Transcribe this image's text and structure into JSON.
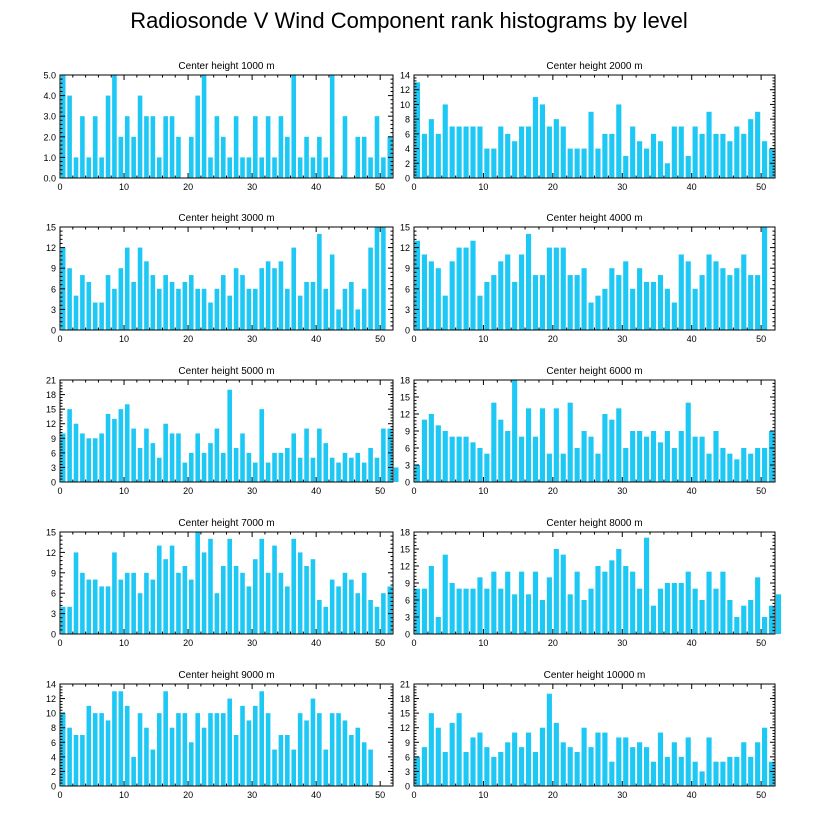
{
  "title": "Radiosonde V Wind Component rank histograms by level",
  "colors": {
    "bar": "#1EC8F5",
    "axis": "#000000"
  },
  "chart_data": [
    {
      "type": "bar",
      "title": "Center height 1000 m",
      "xlim": [
        0,
        52
      ],
      "ylim": [
        0,
        5
      ],
      "xticks": [
        0,
        10,
        20,
        30,
        40,
        50
      ],
      "yticks": [
        0,
        1,
        2,
        3,
        4,
        5
      ],
      "ytick_labels": [
        "0.0",
        "1.0",
        "2.0",
        "3.0",
        "4.0",
        "5.0"
      ],
      "values": [
        5,
        4,
        1,
        3,
        1,
        3,
        1,
        4,
        5,
        2,
        3,
        2,
        4,
        3,
        3,
        1,
        3,
        3,
        2,
        0,
        2,
        4,
        5,
        1,
        3,
        2,
        1,
        3,
        1,
        1,
        3,
        1,
        3,
        1,
        3,
        2,
        5,
        1,
        2,
        1,
        2,
        1,
        5,
        0,
        3,
        0,
        2,
        2,
        1,
        3,
        1,
        2
      ]
    },
    {
      "type": "bar",
      "title": "Center height 2000 m",
      "xlim": [
        0,
        52
      ],
      "ylim": [
        0,
        14
      ],
      "xticks": [
        0,
        10,
        20,
        30,
        40,
        50
      ],
      "yticks": [
        0,
        2,
        4,
        6,
        8,
        10,
        12,
        14
      ],
      "ytick_labels": [
        "0",
        "2",
        "4",
        "6",
        "8",
        "10",
        "12",
        "14"
      ],
      "values": [
        13,
        6,
        8,
        6,
        10,
        7,
        7,
        7,
        7,
        7,
        4,
        4,
        7,
        6,
        5,
        7,
        7,
        11,
        10,
        7,
        8,
        7,
        4,
        4,
        4,
        9,
        4,
        6,
        6,
        10,
        3,
        7,
        5,
        4,
        6,
        5,
        2,
        7,
        7,
        3,
        7,
        6,
        9,
        6,
        6,
        5,
        7,
        6,
        8,
        9,
        5,
        4
      ]
    },
    {
      "type": "bar",
      "title": "Center height 3000 m",
      "xlim": [
        0,
        52
      ],
      "ylim": [
        0,
        15
      ],
      "xticks": [
        0,
        10,
        20,
        30,
        40,
        50
      ],
      "yticks": [
        0,
        3,
        6,
        9,
        12,
        15
      ],
      "ytick_labels": [
        "0",
        "3",
        "6",
        "9",
        "12",
        "15"
      ],
      "values": [
        12,
        9,
        5,
        8,
        7,
        4,
        4,
        8,
        6,
        9,
        12,
        7,
        12,
        10,
        8,
        6,
        8,
        7,
        6,
        7,
        8,
        6,
        6,
        4,
        6,
        8,
        5,
        9,
        8,
        6,
        6,
        9,
        10,
        9,
        10,
        6,
        12,
        5,
        7,
        7,
        14,
        6,
        11,
        3,
        6,
        7,
        3,
        6,
        12,
        15,
        15,
        0
      ]
    },
    {
      "type": "bar",
      "title": "Center height 4000 m",
      "xlim": [
        0,
        52
      ],
      "ylim": [
        0,
        15
      ],
      "xticks": [
        0,
        10,
        20,
        30,
        40,
        50
      ],
      "yticks": [
        0,
        3,
        6,
        9,
        12,
        15
      ],
      "ytick_labels": [
        "0",
        "3",
        "6",
        "9",
        "12",
        "15"
      ],
      "values": [
        13,
        11,
        10,
        9,
        5,
        10,
        12,
        12,
        13,
        5,
        7,
        8,
        10,
        11,
        7,
        11,
        14,
        8,
        8,
        12,
        12,
        12,
        8,
        8,
        9,
        4,
        5,
        6,
        9,
        8,
        10,
        6,
        9,
        7,
        7,
        8,
        6,
        4,
        11,
        10,
        6,
        8,
        11,
        10,
        9,
        8,
        9,
        11,
        8,
        8,
        15,
        0
      ]
    },
    {
      "type": "bar",
      "title": "Center height 5000 m",
      "xlim": [
        0,
        52
      ],
      "ylim": [
        0,
        21
      ],
      "xticks": [
        0,
        10,
        20,
        30,
        40,
        50
      ],
      "yticks": [
        0,
        3,
        6,
        9,
        12,
        15,
        18,
        21
      ],
      "ytick_labels": [
        "0",
        "3",
        "6",
        "9",
        "12",
        "15",
        "18",
        "21"
      ],
      "values": [
        10,
        15,
        12,
        10,
        9,
        9,
        10,
        14,
        13,
        15,
        16,
        11,
        7,
        11,
        8,
        5,
        12,
        10,
        10,
        4,
        6,
        10,
        6,
        8,
        11,
        6,
        19,
        7,
        10,
        6,
        4,
        15,
        4,
        6,
        6,
        7,
        10,
        5,
        11,
        5,
        11,
        8,
        5,
        4,
        6,
        5,
        6,
        4,
        7,
        5,
        11,
        11,
        3
      ]
    },
    {
      "type": "bar",
      "title": "Center height 6000 m",
      "xlim": [
        0,
        52
      ],
      "ylim": [
        0,
        18
      ],
      "xticks": [
        0,
        10,
        20,
        30,
        40,
        50
      ],
      "yticks": [
        0,
        3,
        6,
        9,
        12,
        15,
        18
      ],
      "ytick_labels": [
        "0",
        "3",
        "6",
        "9",
        "12",
        "15",
        "18"
      ],
      "values": [
        3,
        11,
        12,
        10,
        9,
        8,
        8,
        8,
        7,
        6,
        5,
        14,
        11,
        9,
        18,
        8,
        13,
        8,
        13,
        5,
        13,
        5,
        14,
        6,
        9,
        8,
        5,
        12,
        11,
        13,
        6,
        9,
        9,
        8,
        9,
        7,
        9,
        6,
        9,
        14,
        8,
        8,
        5,
        9,
        6,
        5,
        4,
        6,
        5,
        6,
        6,
        9
      ]
    },
    {
      "type": "bar",
      "title": "Center height 7000 m",
      "xlim": [
        0,
        52
      ],
      "ylim": [
        0,
        15
      ],
      "xticks": [
        0,
        10,
        20,
        30,
        40,
        50
      ],
      "yticks": [
        0,
        3,
        6,
        9,
        12,
        15
      ],
      "ytick_labels": [
        "0",
        "3",
        "6",
        "9",
        "12",
        "15"
      ],
      "values": [
        4,
        4,
        12,
        9,
        8,
        8,
        7,
        7,
        12,
        8,
        9,
        9,
        6,
        9,
        8,
        13,
        11,
        13,
        9,
        10,
        8,
        15,
        12,
        14,
        6,
        10,
        14,
        10,
        9,
        7,
        11,
        14,
        9,
        13,
        9,
        7,
        14,
        12,
        10,
        11,
        5,
        4,
        8,
        7,
        9,
        8,
        6,
        9,
        5,
        4,
        6,
        7
      ]
    },
    {
      "type": "bar",
      "title": "Center height 8000 m",
      "xlim": [
        0,
        52
      ],
      "ylim": [
        0,
        18
      ],
      "xticks": [
        0,
        10,
        20,
        30,
        40,
        50
      ],
      "yticks": [
        0,
        3,
        6,
        9,
        12,
        15,
        18
      ],
      "ytick_labels": [
        "0",
        "3",
        "6",
        "9",
        "12",
        "15",
        "18"
      ],
      "values": [
        8,
        8,
        12,
        3,
        14,
        9,
        8,
        8,
        8,
        10,
        8,
        11,
        8,
        11,
        7,
        11,
        7,
        11,
        6,
        10,
        15,
        14,
        7,
        11,
        6,
        8,
        12,
        11,
        13,
        15,
        12,
        11,
        8,
        17,
        5,
        8,
        9,
        9,
        9,
        11,
        8,
        6,
        11,
        8,
        11,
        6,
        3,
        5,
        6,
        10,
        3,
        5,
        7
      ]
    },
    {
      "type": "bar",
      "title": "Center height 9000 m",
      "xlim": [
        0,
        52
      ],
      "ylim": [
        0,
        14
      ],
      "xticks": [
        0,
        10,
        20,
        30,
        40,
        50
      ],
      "yticks": [
        0,
        2,
        4,
        6,
        8,
        10,
        12,
        14
      ],
      "ytick_labels": [
        "0",
        "2",
        "4",
        "6",
        "8",
        "10",
        "12",
        "14"
      ],
      "values": [
        10,
        8,
        7,
        7,
        11,
        10,
        10,
        9,
        13,
        13,
        11,
        4,
        10,
        8,
        5,
        10,
        13,
        8,
        10,
        10,
        6,
        10,
        8,
        10,
        10,
        10,
        12,
        7,
        11,
        9,
        11,
        13,
        10,
        5,
        7,
        7,
        5,
        10,
        9,
        12,
        10,
        5,
        10,
        10,
        9,
        7,
        8,
        6,
        5,
        0,
        0,
        0
      ]
    },
    {
      "type": "bar",
      "title": "Center height 10000 m",
      "xlim": [
        0,
        52
      ],
      "ylim": [
        0,
        21
      ],
      "xticks": [
        0,
        10,
        20,
        30,
        40,
        50
      ],
      "yticks": [
        0,
        3,
        6,
        9,
        12,
        15,
        18,
        21
      ],
      "ytick_labels": [
        "0",
        "3",
        "6",
        "9",
        "12",
        "15",
        "18",
        "21"
      ],
      "values": [
        6,
        8,
        15,
        12,
        7,
        13,
        15,
        7,
        10,
        11,
        8,
        6,
        7,
        9,
        11,
        8,
        11,
        7,
        12,
        19,
        13,
        9,
        8,
        7,
        12,
        8,
        11,
        11,
        5,
        10,
        10,
        8,
        9,
        8,
        5,
        11,
        6,
        9,
        6,
        10,
        5,
        3,
        10,
        5,
        5,
        6,
        6,
        9,
        6,
        9,
        12,
        5
      ]
    }
  ]
}
